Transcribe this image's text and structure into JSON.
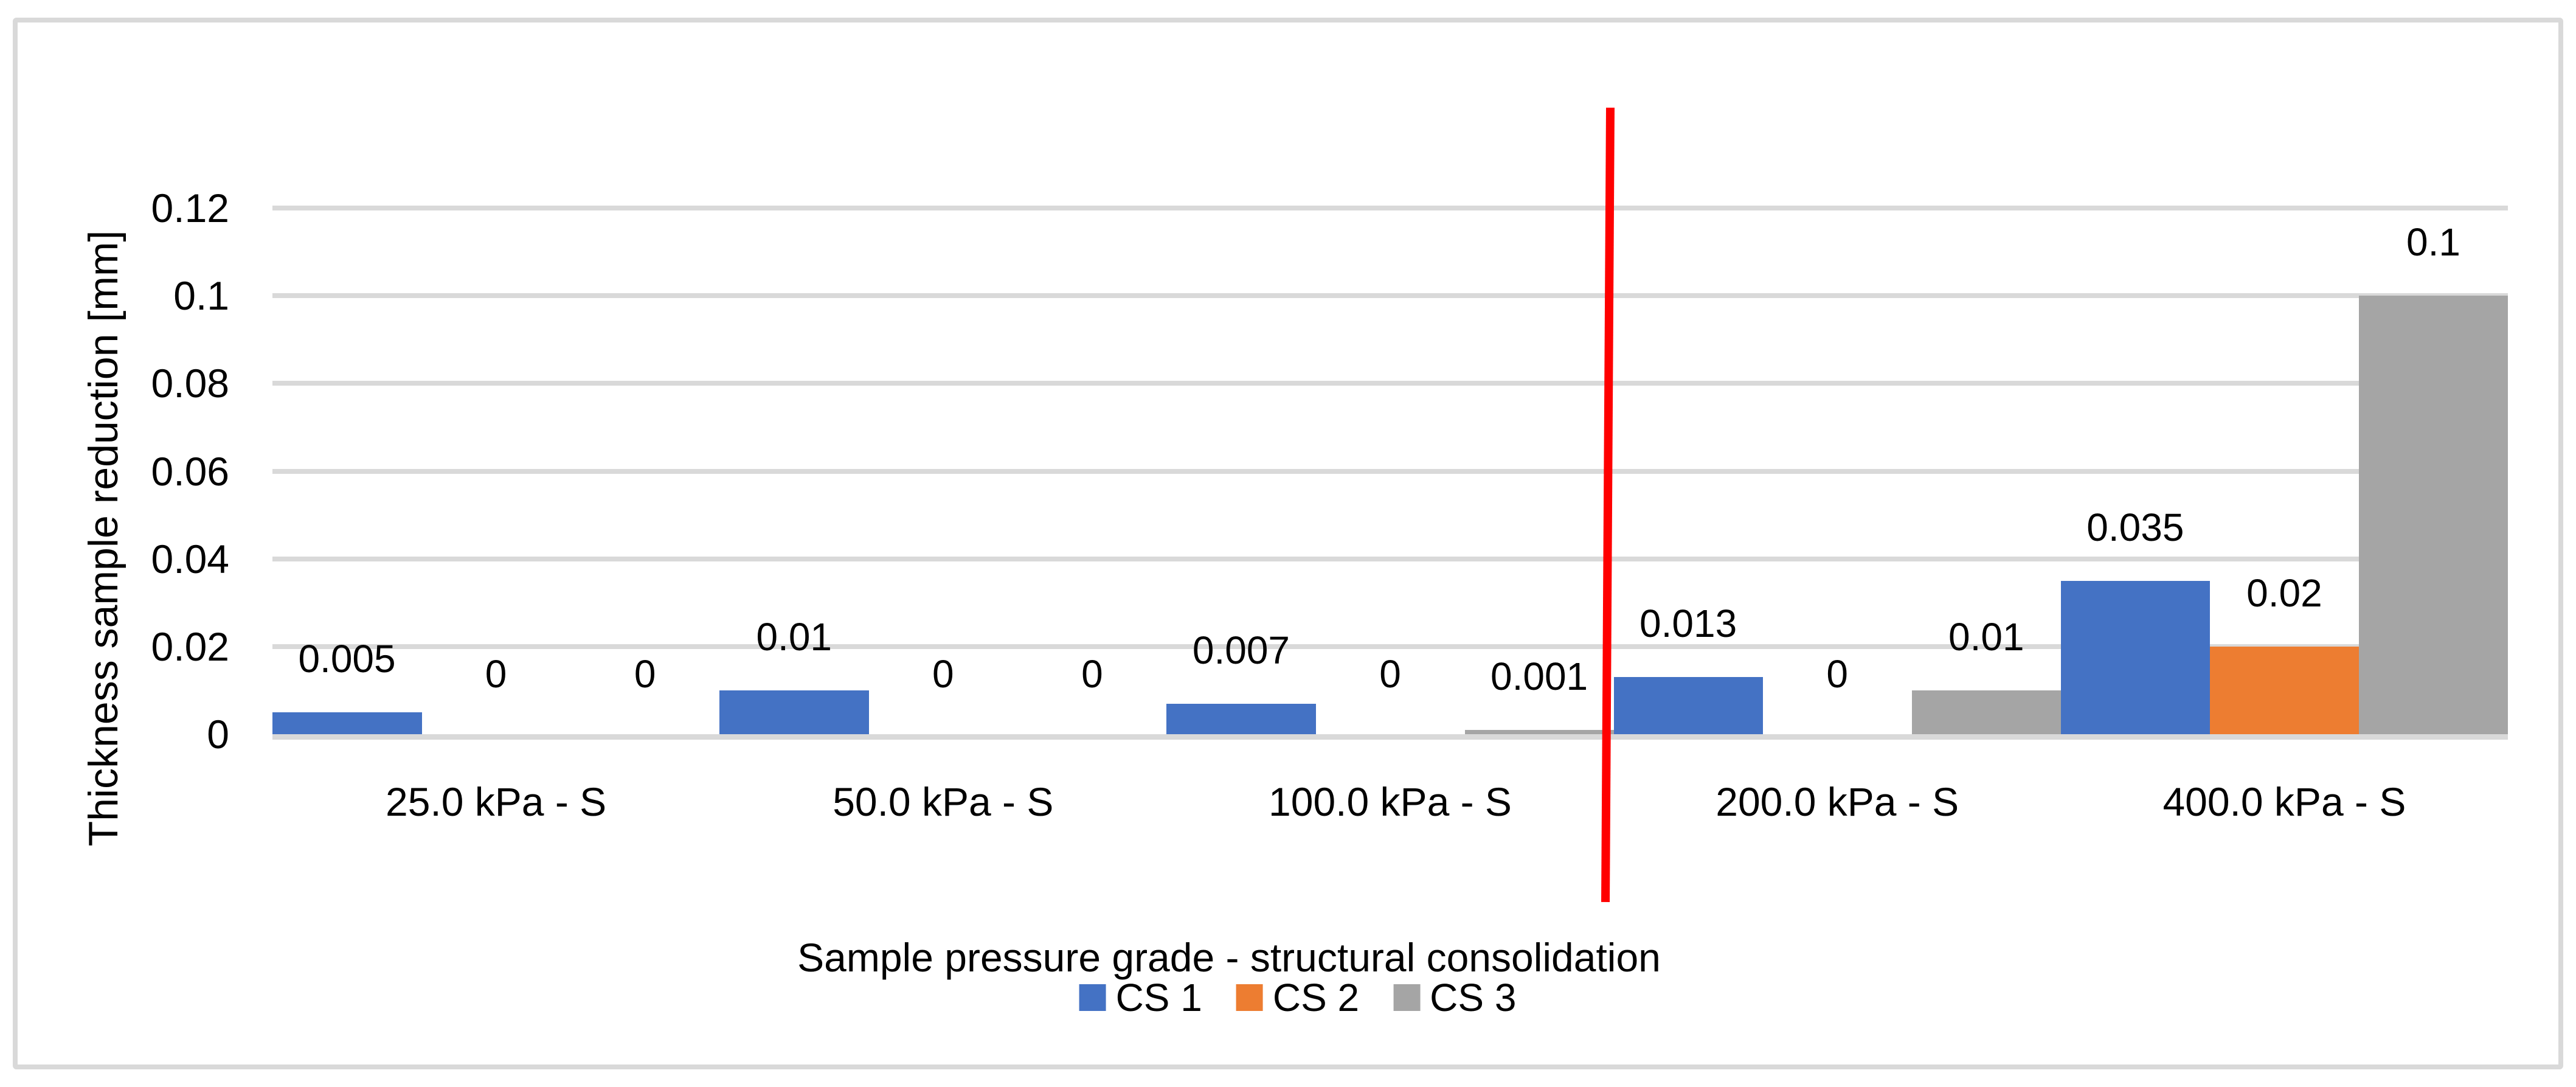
{
  "chart_data": {
    "type": "bar",
    "title": "",
    "xlabel": "Sample pressure grade - structural consolidation",
    "ylabel": "Thickness sample reduction [mm]",
    "categories": [
      "25.0 kPa - S",
      "50.0 kPa - S",
      "100.0 kPa - S",
      "200.0 kPa - S",
      "400.0 kPa - S"
    ],
    "series": [
      {
        "name": "CS 1",
        "color": "#4472C4",
        "values": [
          0.005,
          0.01,
          0.007,
          0.013,
          0.035
        ]
      },
      {
        "name": "CS 2",
        "color": "#ED7D31",
        "values": [
          0,
          0,
          0,
          0,
          0.02
        ]
      },
      {
        "name": "CS 3",
        "color": "#A5A5A5",
        "values": [
          0,
          0,
          0.001,
          0.01,
          0.1
        ]
      }
    ],
    "data_labels": [
      [
        "0.005",
        "0",
        "0"
      ],
      [
        "0.01",
        "0",
        "0"
      ],
      [
        "0.007",
        "0",
        "0.001"
      ],
      [
        "0.013",
        "0",
        "0.01"
      ],
      [
        "0.035",
        "0.02",
        "0.1"
      ]
    ],
    "ylim": [
      0,
      0.13
    ],
    "yticks": [
      0,
      0.02,
      0.04,
      0.06,
      0.08,
      0.1,
      0.12
    ],
    "ytick_labels": [
      "0",
      "0.02",
      "0.04",
      "0.06",
      "0.08",
      "0.1",
      "0.12"
    ],
    "grid": true,
    "bar_gap": "none",
    "legend_position": "bottom-center",
    "annotations": [
      {
        "type": "vertical-line",
        "color": "#FF0000",
        "position": "between 100.0 kPa - S and 200.0 kPa - S"
      }
    ]
  },
  "legend": {
    "items": [
      {
        "label": "CS 1",
        "color": "#4472C4"
      },
      {
        "label": "CS 2",
        "color": "#ED7D31"
      },
      {
        "label": "CS 3",
        "color": "#A5A5A5"
      }
    ]
  },
  "colors": {
    "gridline": "#D9D9D9",
    "axis_line": "#D9D9D9",
    "figure_border": "#D9D9D9",
    "background": "#FFFFFF",
    "text": "#000000",
    "red_line": "#FF0000"
  }
}
